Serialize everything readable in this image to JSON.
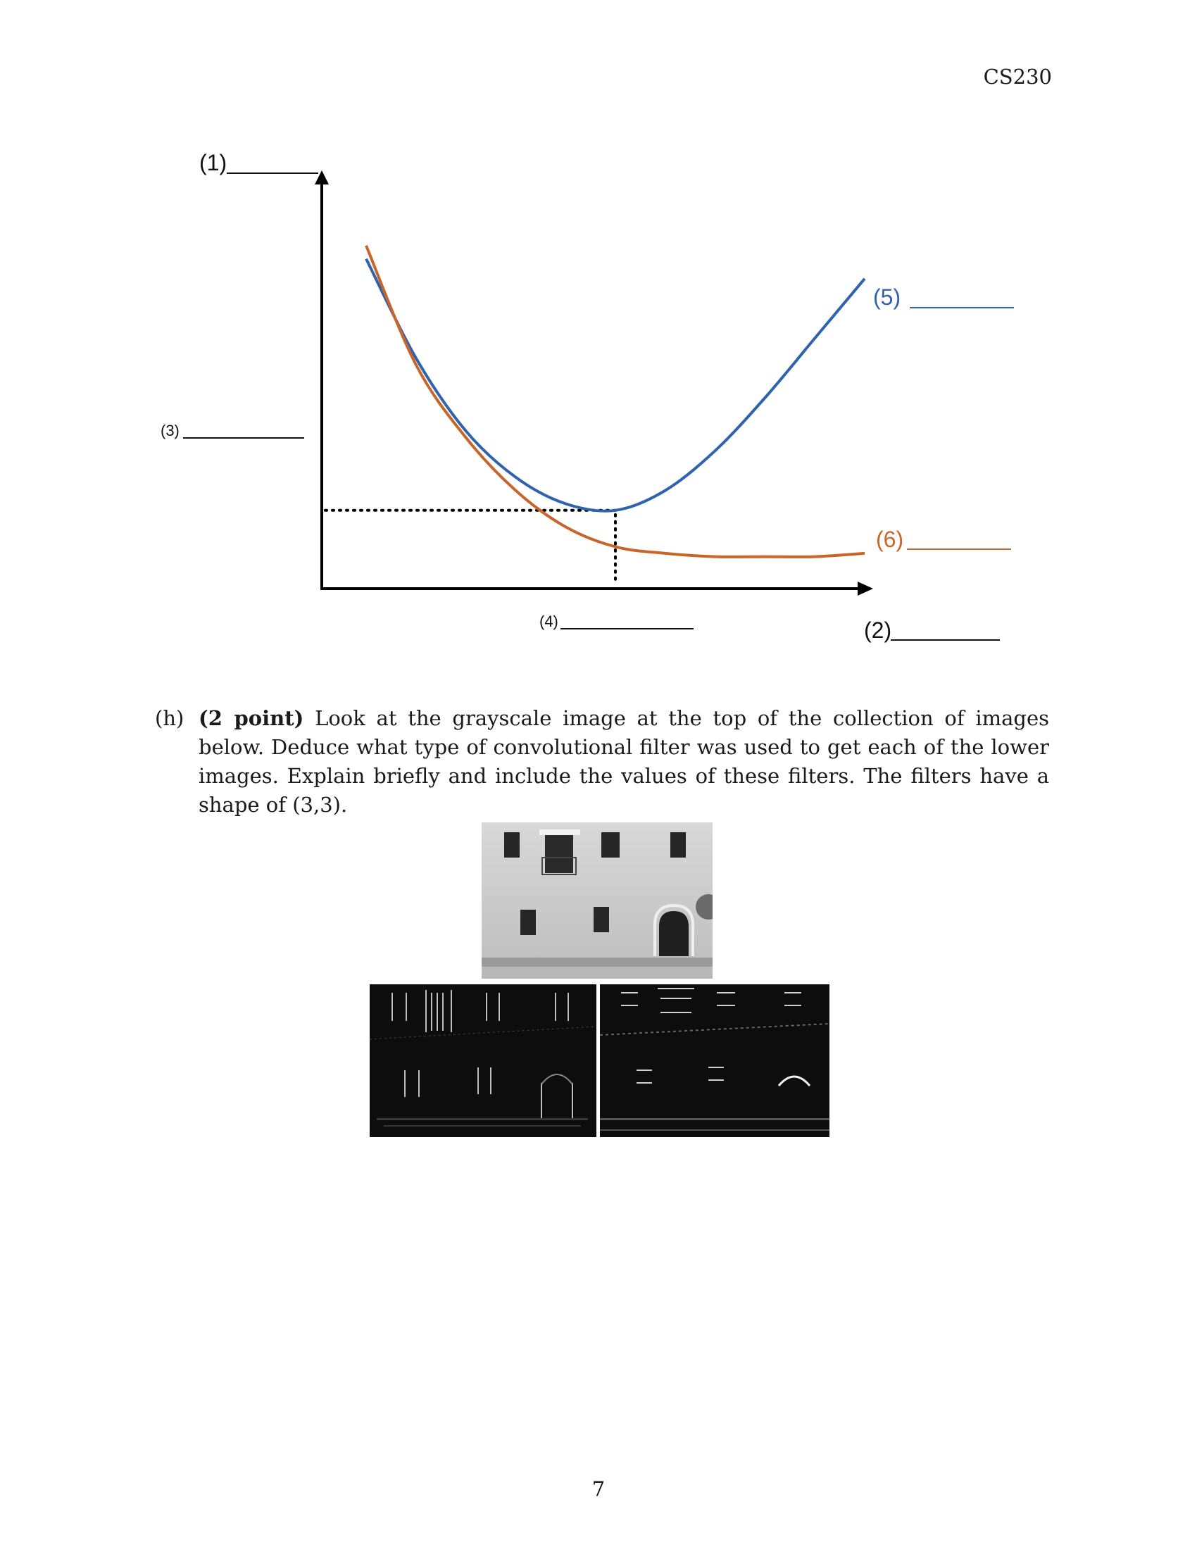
{
  "header": {
    "course": "CS230"
  },
  "chart_data": {
    "type": "line",
    "title": "",
    "blanks": {
      "y_axis": "(1)",
      "x_axis": "(2)",
      "y_marker": "(3)",
      "x_marker": "(4)",
      "blue_curve": "(5)",
      "orange_curve": "(6)"
    },
    "x": [
      0.0,
      0.1,
      0.2,
      0.3,
      0.4,
      0.5,
      0.6,
      0.7,
      0.8,
      0.9,
      1.0
    ],
    "series": [
      {
        "color": "#2f63ae",
        "values": [
          0.92,
          0.62,
          0.4,
          0.26,
          0.18,
          0.16,
          0.22,
          0.34,
          0.5,
          0.68,
          0.86
        ]
      },
      {
        "color": "#c8652a",
        "values": [
          0.96,
          0.6,
          0.38,
          0.22,
          0.11,
          0.05,
          0.03,
          0.02,
          0.02,
          0.02,
          0.03
        ]
      }
    ],
    "reference_lines": {
      "x_min_index": 5
    },
    "xlim": [
      0,
      1
    ],
    "ylim": [
      0,
      1
    ]
  },
  "question": {
    "tag": "(h)",
    "points": "(2 point)",
    "text": "Look at the grayscale image at the top of the collection of images below. Deduce what type of convolutional filter was used to get each of the lower images. Explain briefly and include the values of these filters. The filters have a shape of (3,3)."
  },
  "page_number": "7"
}
